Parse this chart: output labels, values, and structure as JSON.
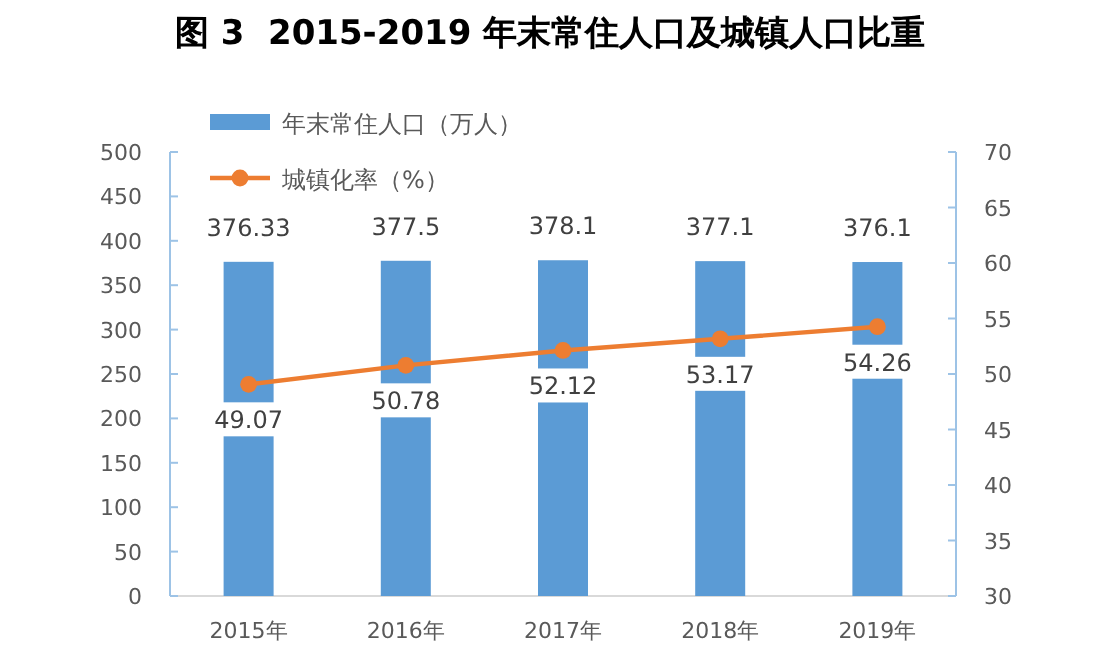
{
  "chart_data": {
    "type": "bar",
    "title": "图 3  2015-2019 年末常住人口及城镇人口比重",
    "categories": [
      "2015年",
      "2016年",
      "2017年",
      "2018年",
      "2019年"
    ],
    "series": [
      {
        "name": "年末常住人口（万人）",
        "color": "#5b9bd5",
        "values": [
          376.33,
          377.5,
          378.1,
          377.1,
          376.1
        ]
      },
      {
        "name": "城镇化率（%）",
        "type": "line",
        "axis": "y2",
        "color": "#ed7d31",
        "marker": "circle",
        "values": [
          49.07,
          50.78,
          52.12,
          53.17,
          54.26
        ]
      }
    ],
    "ylim": [
      0,
      500
    ],
    "yticks": [
      0,
      50,
      100,
      150,
      200,
      250,
      300,
      350,
      400,
      450,
      500
    ],
    "y2lim": [
      30,
      70
    ],
    "y2ticks": [
      30,
      35,
      40,
      45,
      50,
      55,
      60,
      65,
      70
    ],
    "data_labels": true,
    "legend": "top left",
    "grid": false
  }
}
